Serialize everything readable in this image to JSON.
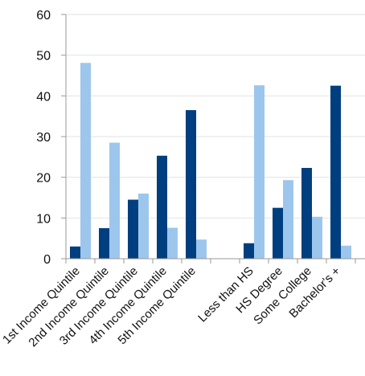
{
  "chart_data": {
    "type": "bar",
    "title": "",
    "xlabel": "",
    "ylabel": "",
    "ylim": [
      0,
      60
    ],
    "yticks": [
      0,
      10,
      20,
      30,
      40,
      50,
      60
    ],
    "grid": true,
    "legend": "none",
    "categories": [
      "1st Income Quintile",
      "2nd Income Quintile",
      "3rd Income Quintile",
      "4th Income Quintile",
      "5th Income Quintile",
      "",
      "Less than HS",
      "HS Degree",
      "Some College",
      "Bachelor's +"
    ],
    "series": [
      {
        "color": "#003f7f",
        "values": [
          3,
          7.5,
          14.5,
          25.3,
          36.5,
          null,
          3.8,
          12.5,
          22.3,
          42.5
        ]
      },
      {
        "color": "#9dc6ec",
        "values": [
          48.1,
          28.5,
          16,
          7.6,
          4.7,
          null,
          42.6,
          19.3,
          10.3,
          3.2
        ]
      }
    ]
  }
}
